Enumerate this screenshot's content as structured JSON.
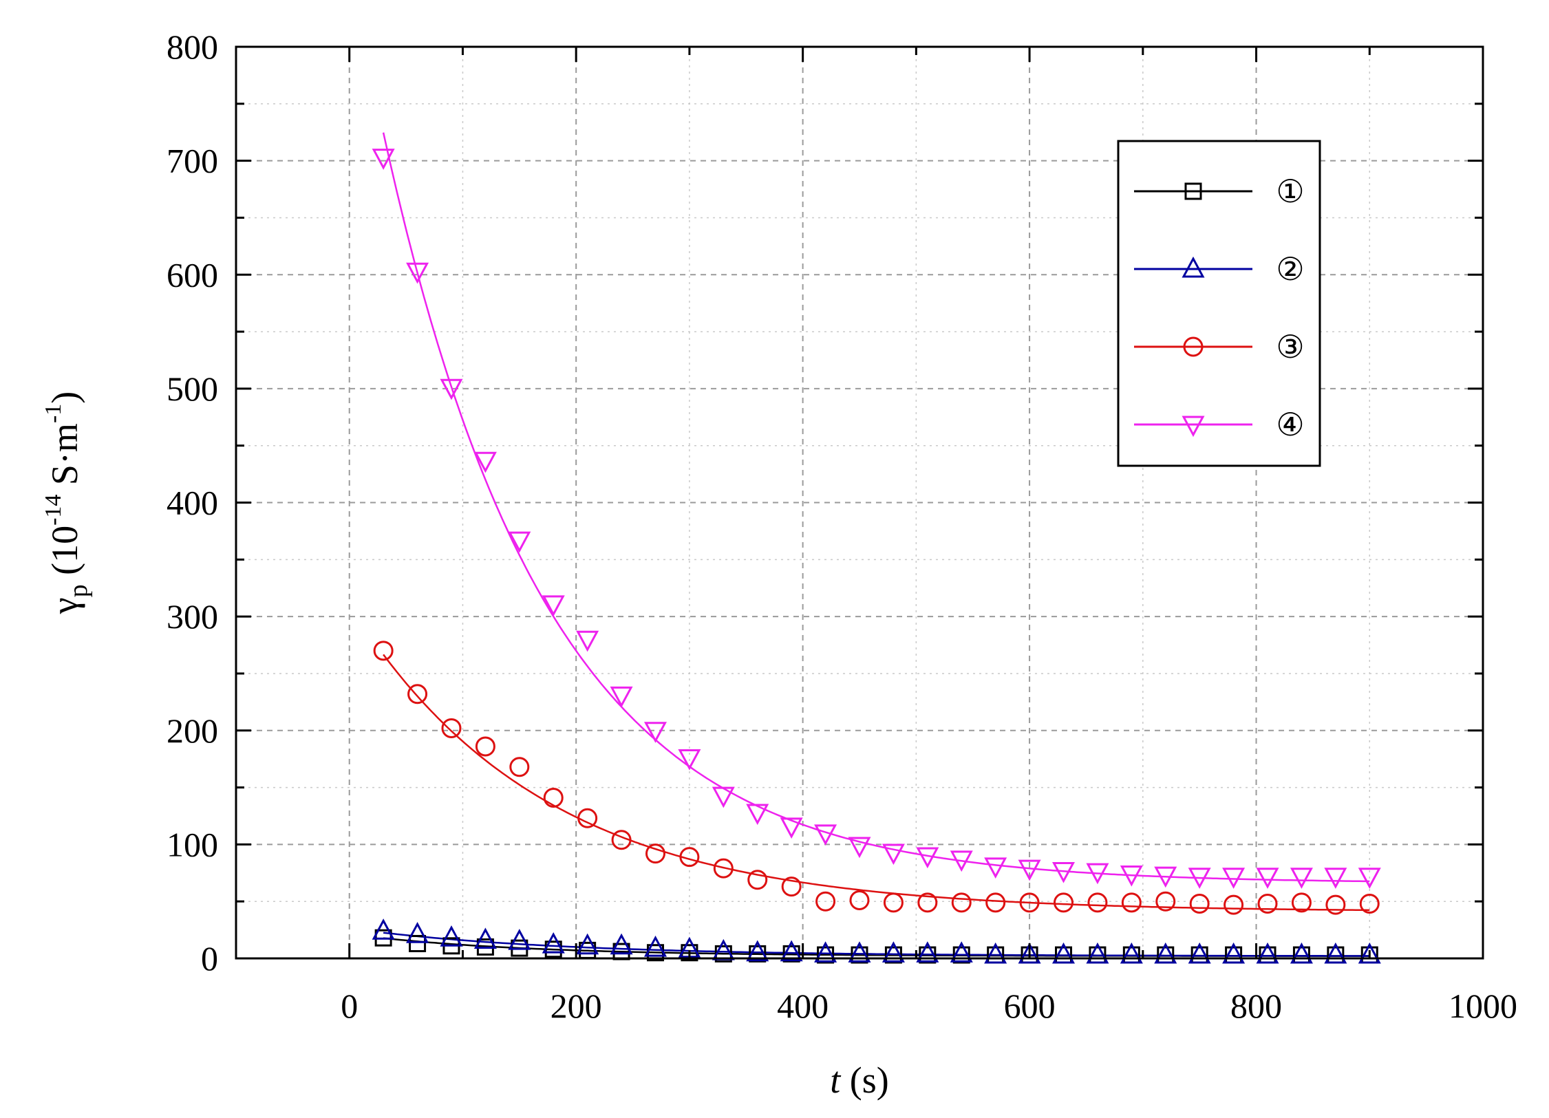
{
  "chart_data": {
    "type": "scatter",
    "title": "",
    "xlabel": {
      "italic": "t",
      "rest": " (s)"
    },
    "ylabel": {
      "symbol": "γ",
      "sub": "p",
      "open": " (10",
      "exp": "-14",
      "mid": " S·m",
      "exp2": "-1",
      "close": ")"
    },
    "xlim": [
      -100,
      1000
    ],
    "ylim": [
      0,
      800
    ],
    "xticks": [
      0,
      200,
      400,
      600,
      800,
      1000
    ],
    "yticks": [
      0,
      100,
      200,
      300,
      400,
      500,
      600,
      700,
      800
    ],
    "xtick_labels": [
      "0",
      "200",
      "400",
      "600",
      "800",
      "1000"
    ],
    "ytick_labels": [
      "0",
      "100",
      "200",
      "300",
      "400",
      "500",
      "600",
      "700",
      "800"
    ],
    "grid": true,
    "legend_position": "top-right",
    "x": [
      30,
      60,
      90,
      120,
      150,
      180,
      210,
      240,
      270,
      300,
      330,
      360,
      390,
      420,
      450,
      480,
      510,
      540,
      570,
      600,
      630,
      660,
      690,
      720,
      750,
      780,
      810,
      840,
      870,
      900
    ],
    "series": [
      {
        "name": "①",
        "color": "#000000",
        "marker": "square",
        "values": [
          18,
          13,
          11,
          10,
          9,
          8,
          7,
          6,
          5,
          5,
          4,
          4,
          4,
          3,
          3,
          3,
          3,
          3,
          3,
          3,
          3,
          3,
          3,
          3,
          3,
          3,
          3,
          3,
          3,
          3
        ],
        "fit": {
          "a": 19,
          "tau": 150,
          "c": 2
        }
      },
      {
        "name": "②",
        "color": "#0000a0",
        "marker": "triangle-up",
        "values": [
          24,
          21,
          18,
          16,
          15,
          12,
          11,
          11,
          9,
          8,
          6,
          5,
          5,
          4,
          4,
          4,
          4,
          4,
          3,
          3,
          3,
          3,
          3,
          3,
          3,
          3,
          3,
          3,
          3,
          3
        ],
        "fit": {
          "a": 24,
          "tau": 180,
          "c": 2
        }
      },
      {
        "name": "③",
        "color": "#dd1111",
        "marker": "circle",
        "values": [
          270,
          232,
          202,
          186,
          168,
          141,
          123,
          104,
          92,
          89,
          79,
          69,
          63,
          50,
          51,
          49,
          49,
          49,
          49,
          49,
          49,
          49,
          49,
          50,
          48,
          47,
          48,
          49,
          47,
          48
        ],
        "fit": {
          "a": 266,
          "tau": 170,
          "c": 41
        }
      },
      {
        "name": "④",
        "color": "#ee22ee",
        "marker": "triangle-down",
        "values": [
          703,
          603,
          501,
          437,
          367,
          311,
          280,
          231,
          200,
          176,
          143,
          128,
          116,
          110,
          99,
          93,
          90,
          87,
          81,
          79,
          77,
          76,
          74,
          73,
          72,
          72,
          72,
          72,
          72,
          72
        ],
        "fit": {
          "a": 799,
          "tau": 145,
          "c": 66
        }
      }
    ]
  }
}
